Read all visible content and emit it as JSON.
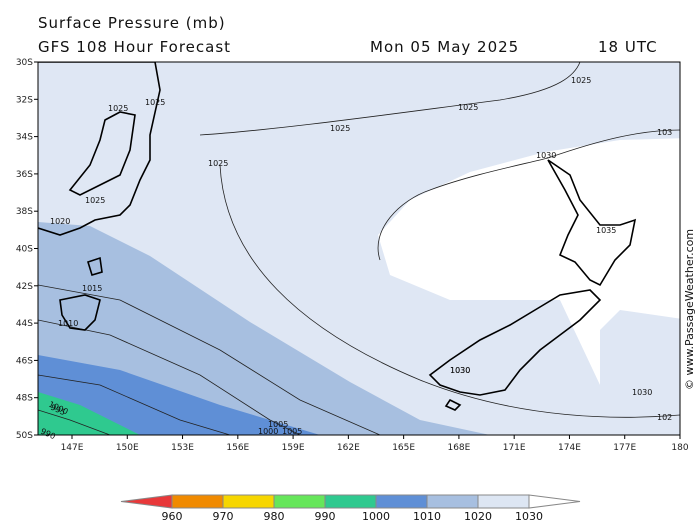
{
  "header": {
    "title": "Surface Pressure (mb)",
    "subtitle": "GFS 108 Hour Forecast",
    "date": "Mon 05 May 2025",
    "time": "18 UTC"
  },
  "latitudes": [
    "30S",
    "32S",
    "34S",
    "36S",
    "38S",
    "40S",
    "42S",
    "44S",
    "46S",
    "48S",
    "50S"
  ],
  "longitudes": [
    "147E",
    "150E",
    "153E",
    "156E",
    "159E",
    "162E",
    "165E",
    "168E",
    "171E",
    "174E",
    "177E",
    "180"
  ],
  "isobar_labels": [
    "1025",
    "1025",
    "1025",
    "1025",
    "1025",
    "1025",
    "1025",
    "1030",
    "1030",
    "1035",
    "1030",
    "102",
    "1020",
    "1015",
    "1010",
    "1000",
    "995",
    "990",
    "1005",
    "1000",
    "1005",
    "1030",
    "103"
  ],
  "colorbar": {
    "labels": [
      960,
      970,
      980,
      990,
      1000,
      1010,
      1020,
      1030
    ],
    "colors": [
      "#e8383a",
      "#f08a00",
      "#f6d600",
      "#66e65a",
      "#2fc98f",
      "#5f8fd6",
      "#a7bfe0",
      "#dde6f3",
      "#ffffff"
    ]
  },
  "watermark": "© www.PassageWeather.com"
}
